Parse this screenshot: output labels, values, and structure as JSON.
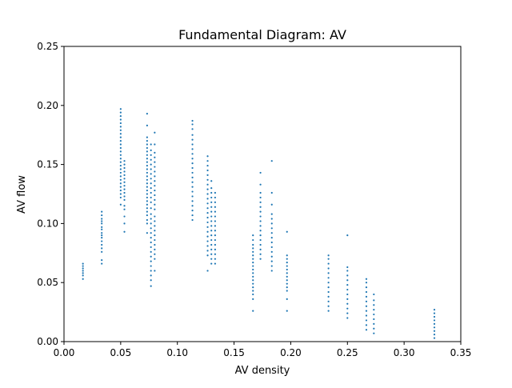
{
  "chart_data": {
    "type": "scatter",
    "title": "Fundamental Diagram: AV",
    "xlabel": "AV density",
    "ylabel": "AV flow",
    "xlim": [
      0.0,
      0.35
    ],
    "ylim": [
      0.0,
      0.25
    ],
    "xticks": [
      0.0,
      0.05,
      0.1,
      0.15,
      0.2,
      0.25,
      0.3,
      0.35
    ],
    "xtick_labels": [
      "0.00",
      "0.05",
      "0.10",
      "0.15",
      "0.20",
      "0.25",
      "0.30",
      "0.35"
    ],
    "yticks": [
      0.0,
      0.05,
      0.1,
      0.15,
      0.2,
      0.25
    ],
    "ytick_labels": [
      "0.00",
      "0.05",
      "0.10",
      "0.15",
      "0.20",
      "0.25"
    ],
    "grid": false,
    "marker_color": "#1f77b4",
    "series": [
      {
        "points_by_density": [
          {
            "x": 0.0167,
            "y": [
              0.053,
              0.056,
              0.058,
              0.06,
              0.062,
              0.064,
              0.066
            ]
          },
          {
            "x": 0.0333,
            "y": [
              0.066,
              0.069,
              0.076,
              0.079,
              0.082,
              0.085,
              0.088,
              0.09,
              0.092,
              0.095,
              0.097,
              0.1,
              0.102,
              0.104,
              0.107,
              0.11
            ]
          },
          {
            "x": 0.05,
            "y": [
              0.116,
              0.122,
              0.125,
              0.128,
              0.131,
              0.134,
              0.137,
              0.14,
              0.143,
              0.146,
              0.149,
              0.152,
              0.155,
              0.158,
              0.161,
              0.164,
              0.167,
              0.17,
              0.173,
              0.176,
              0.179,
              0.182,
              0.185,
              0.188,
              0.191,
              0.194,
              0.197
            ]
          },
          {
            "x": 0.0533,
            "y": [
              0.093,
              0.1,
              0.106,
              0.112,
              0.115,
              0.12,
              0.123,
              0.126,
              0.129,
              0.132,
              0.135,
              0.138,
              0.141,
              0.144,
              0.147,
              0.15,
              0.153
            ]
          },
          {
            "x": 0.0733,
            "y": [
              0.092,
              0.1,
              0.103,
              0.107,
              0.11,
              0.113,
              0.116,
              0.119,
              0.122,
              0.125,
              0.128,
              0.131,
              0.134,
              0.137,
              0.14,
              0.143,
              0.146,
              0.149,
              0.152,
              0.155,
              0.158,
              0.161,
              0.164,
              0.167,
              0.17,
              0.173,
              0.183,
              0.193
            ]
          },
          {
            "x": 0.0767,
            "y": [
              0.047,
              0.052,
              0.056,
              0.06,
              0.064,
              0.068,
              0.072,
              0.076,
              0.08,
              0.084,
              0.088,
              0.092,
              0.096,
              0.1,
              0.104,
              0.108,
              0.113,
              0.118,
              0.122,
              0.126,
              0.13,
              0.134,
              0.138,
              0.142,
              0.146,
              0.15,
              0.154,
              0.158,
              0.162,
              0.167
            ]
          },
          {
            "x": 0.08,
            "y": [
              0.06,
              0.07,
              0.074,
              0.078,
              0.082,
              0.086,
              0.09,
              0.094,
              0.098,
              0.102,
              0.106,
              0.112,
              0.116,
              0.12,
              0.124,
              0.128,
              0.132,
              0.136,
              0.14,
              0.144,
              0.148,
              0.152,
              0.156,
              0.16,
              0.167,
              0.177
            ]
          },
          {
            "x": 0.1133,
            "y": [
              0.103,
              0.107,
              0.111,
              0.115,
              0.119,
              0.123,
              0.127,
              0.131,
              0.135,
              0.139,
              0.143,
              0.147,
              0.151,
              0.155,
              0.159,
              0.163,
              0.167,
              0.171,
              0.175,
              0.18,
              0.184,
              0.187
            ]
          },
          {
            "x": 0.1267,
            "y": [
              0.06,
              0.073,
              0.077,
              0.081,
              0.085,
              0.089,
              0.093,
              0.097,
              0.101,
              0.105,
              0.109,
              0.113,
              0.117,
              0.121,
              0.125,
              0.129,
              0.133,
              0.137,
              0.141,
              0.145,
              0.149,
              0.153,
              0.157
            ]
          },
          {
            "x": 0.13,
            "y": [
              0.066,
              0.07,
              0.074,
              0.078,
              0.082,
              0.086,
              0.09,
              0.094,
              0.098,
              0.102,
              0.106,
              0.11,
              0.114,
              0.118,
              0.122,
              0.126,
              0.13,
              0.136
            ]
          },
          {
            "x": 0.1333,
            "y": [
              0.066,
              0.07,
              0.074,
              0.078,
              0.082,
              0.086,
              0.09,
              0.094,
              0.098,
              0.102,
              0.106,
              0.11,
              0.114,
              0.118,
              0.122,
              0.126
            ]
          },
          {
            "x": 0.1667,
            "y": [
              0.026,
              0.036,
              0.04,
              0.043,
              0.046,
              0.049,
              0.052,
              0.055,
              0.058,
              0.061,
              0.064,
              0.067,
              0.07,
              0.073,
              0.076,
              0.079,
              0.082,
              0.086,
              0.09
            ]
          },
          {
            "x": 0.1733,
            "y": [
              0.07,
              0.074,
              0.078,
              0.082,
              0.086,
              0.09,
              0.094,
              0.098,
              0.102,
              0.106,
              0.11,
              0.114,
              0.118,
              0.122,
              0.126,
              0.133,
              0.143
            ]
          },
          {
            "x": 0.1833,
            "y": [
              0.06,
              0.064,
              0.068,
              0.072,
              0.076,
              0.08,
              0.084,
              0.088,
              0.092,
              0.096,
              0.1,
              0.104,
              0.108,
              0.116,
              0.126,
              0.153
            ]
          },
          {
            "x": 0.1967,
            "y": [
              0.026,
              0.036,
              0.043,
              0.046,
              0.049,
              0.052,
              0.055,
              0.058,
              0.061,
              0.064,
              0.067,
              0.07,
              0.073,
              0.093
            ]
          },
          {
            "x": 0.2333,
            "y": [
              0.026,
              0.03,
              0.034,
              0.038,
              0.042,
              0.046,
              0.05,
              0.054,
              0.058,
              0.062,
              0.066,
              0.07,
              0.073
            ]
          },
          {
            "x": 0.25,
            "y": [
              0.02,
              0.024,
              0.028,
              0.032,
              0.036,
              0.04,
              0.044,
              0.048,
              0.052,
              0.056,
              0.06,
              0.063,
              0.09
            ]
          },
          {
            "x": 0.2667,
            "y": [
              0.01,
              0.014,
              0.018,
              0.022,
              0.026,
              0.03,
              0.034,
              0.038,
              0.042,
              0.046,
              0.05,
              0.053
            ]
          },
          {
            "x": 0.2733,
            "y": [
              0.007,
              0.011,
              0.015,
              0.019,
              0.023,
              0.027,
              0.031,
              0.035,
              0.04
            ]
          },
          {
            "x": 0.3267,
            "y": [
              0.003,
              0.006,
              0.009,
              0.012,
              0.015,
              0.018,
              0.021,
              0.024,
              0.027
            ]
          }
        ]
      }
    ]
  }
}
